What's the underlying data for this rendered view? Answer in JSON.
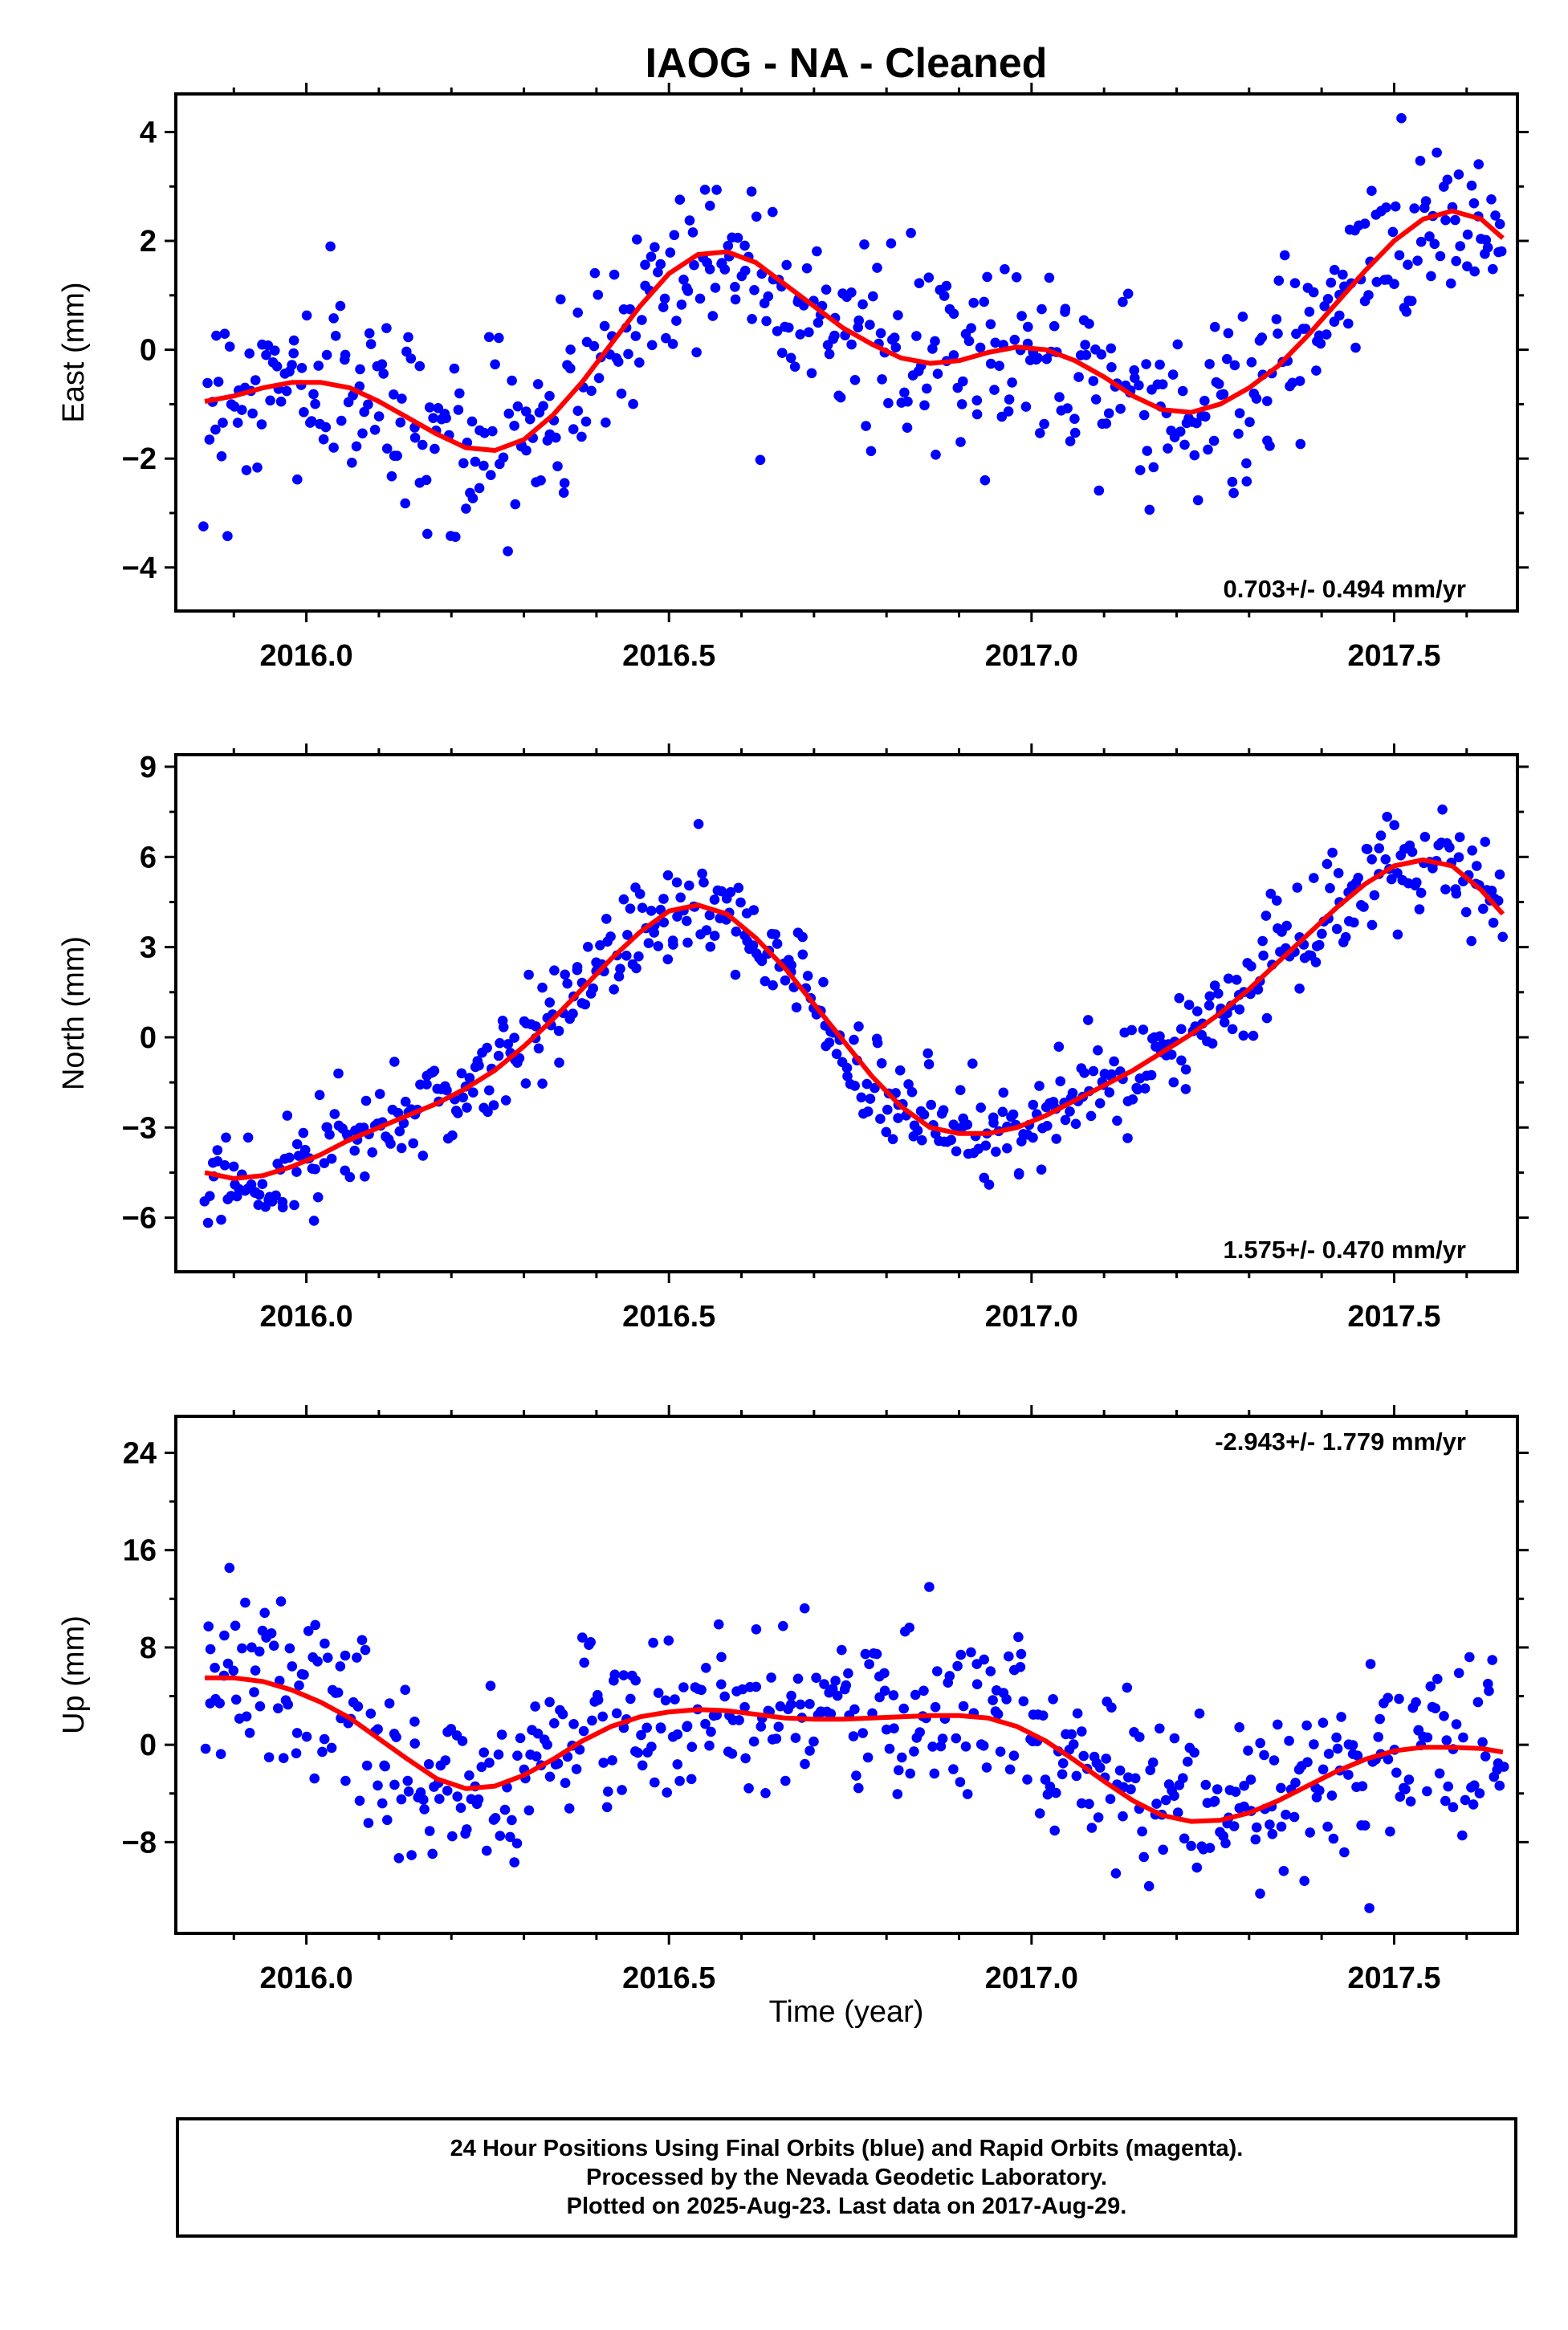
{
  "figure": {
    "title": "IAOG  - NA - Cleaned",
    "xlabel": "Time (year)",
    "colors": {
      "points": "#0000ff",
      "fit": "#ff0000",
      "frame": "#000000"
    }
  },
  "chart_data": [
    {
      "type": "scatter",
      "panel": "east",
      "ylabel": "East (mm)",
      "rate_label": "0.703+/- 0.494 mm/yr",
      "rate_position": "bottom-right",
      "xlim": [
        2015.82,
        2017.67
      ],
      "ylim": [
        -4.8,
        4.7
      ],
      "xticks": [
        2016.0,
        2016.5,
        2017.0,
        2017.5
      ],
      "xtick_labels": [
        "2016.0",
        "2016.5",
        "2017.0",
        "2017.5"
      ],
      "yticks": [
        4,
        2,
        0,
        -2,
        -4
      ],
      "ytick_labels": [
        "4",
        "2",
        "0",
        "−2",
        "−4"
      ],
      "grid": false,
      "series": [
        {
          "kind": "points",
          "x": [
            2015.86,
            2015.9,
            2015.94,
            2015.98,
            2016.02,
            2016.06,
            2016.1,
            2016.14,
            2016.18,
            2016.22,
            2016.26,
            2016.3,
            2016.34,
            2016.38,
            2016.42,
            2016.46,
            2016.5,
            2016.54,
            2016.58,
            2016.62,
            2016.66,
            2016.7,
            2016.74,
            2016.78,
            2016.82,
            2016.86,
            2016.9,
            2016.94,
            2016.98,
            2017.02,
            2017.06,
            2017.1,
            2017.14,
            2017.18,
            2017.22,
            2017.26,
            2017.3,
            2017.34,
            2017.38,
            2017.42,
            2017.46,
            2017.5,
            2017.54,
            2017.58,
            2017.62,
            2017.65
          ],
          "y": [
            -0.9,
            -0.8,
            -0.7,
            -0.6,
            -0.6,
            -0.7,
            -0.9,
            -1.2,
            -1.5,
            -1.8,
            -1.8,
            -1.6,
            -1.2,
            -0.6,
            0.1,
            0.8,
            1.4,
            1.7,
            1.8,
            1.6,
            1.2,
            0.8,
            0.4,
            0.1,
            -0.2,
            -0.3,
            -0.2,
            -0.1,
            0.0,
            0.0,
            -0.2,
            -0.5,
            -0.8,
            -1.1,
            -1.2,
            -1.1,
            -0.8,
            -0.4,
            0.2,
            0.8,
            1.4,
            2.0,
            2.4,
            2.6,
            2.4,
            2.0
          ]
        },
        {
          "kind": "fit",
          "x": [
            2015.86,
            2015.9,
            2015.94,
            2015.98,
            2016.02,
            2016.06,
            2016.1,
            2016.14,
            2016.18,
            2016.22,
            2016.26,
            2016.3,
            2016.34,
            2016.38,
            2016.42,
            2016.46,
            2016.5,
            2016.54,
            2016.58,
            2016.62,
            2016.66,
            2016.7,
            2016.74,
            2016.78,
            2016.82,
            2016.86,
            2016.9,
            2016.94,
            2016.98,
            2017.02,
            2017.06,
            2017.1,
            2017.14,
            2017.18,
            2017.22,
            2017.26,
            2017.3,
            2017.34,
            2017.38,
            2017.42,
            2017.46,
            2017.5,
            2017.54,
            2017.58,
            2017.62,
            2017.65
          ],
          "y": [
            -0.95,
            -0.85,
            -0.7,
            -0.6,
            -0.6,
            -0.7,
            -0.95,
            -1.25,
            -1.55,
            -1.8,
            -1.85,
            -1.65,
            -1.2,
            -0.6,
            0.1,
            0.8,
            1.4,
            1.75,
            1.8,
            1.6,
            1.2,
            0.8,
            0.4,
            0.1,
            -0.15,
            -0.25,
            -0.2,
            -0.05,
            0.05,
            0.0,
            -0.2,
            -0.5,
            -0.85,
            -1.1,
            -1.15,
            -1.0,
            -0.7,
            -0.3,
            0.25,
            0.85,
            1.45,
            2.0,
            2.4,
            2.55,
            2.4,
            2.05
          ]
        }
      ]
    },
    {
      "type": "scatter",
      "panel": "north",
      "ylabel": "North (mm)",
      "rate_label": "1.575+/- 0.470 mm/yr",
      "rate_position": "bottom-right",
      "xlim": [
        2015.82,
        2017.67
      ],
      "ylim": [
        -7.8,
        9.4
      ],
      "xticks": [
        2016.0,
        2016.5,
        2017.0,
        2017.5
      ],
      "xtick_labels": [
        "2016.0",
        "2016.5",
        "2017.0",
        "2017.5"
      ],
      "yticks": [
        9,
        6,
        3,
        0,
        -3,
        -6
      ],
      "ytick_labels": [
        "9",
        "6",
        "3",
        "0",
        "−3",
        "−6"
      ],
      "grid": false,
      "series": [
        {
          "kind": "points",
          "x": [
            2015.86,
            2015.9,
            2015.94,
            2015.98,
            2016.02,
            2016.06,
            2016.1,
            2016.14,
            2016.18,
            2016.22,
            2016.26,
            2016.3,
            2016.34,
            2016.38,
            2016.42,
            2016.46,
            2016.5,
            2016.54,
            2016.58,
            2016.62,
            2016.66,
            2016.7,
            2016.74,
            2016.78,
            2016.82,
            2016.86,
            2016.9,
            2016.94,
            2016.98,
            2017.02,
            2017.06,
            2017.1,
            2017.14,
            2017.18,
            2017.22,
            2017.26,
            2017.3,
            2017.34,
            2017.38,
            2017.42,
            2017.46,
            2017.5,
            2017.54,
            2017.58,
            2017.62,
            2017.65
          ],
          "y": [
            -4.6,
            -4.7,
            -4.6,
            -4.3,
            -3.9,
            -3.4,
            -3.0,
            -2.6,
            -2.2,
            -1.7,
            -1.1,
            -0.3,
            0.6,
            1.6,
            2.6,
            3.5,
            4.2,
            4.4,
            4.1,
            3.3,
            2.3,
            1.1,
            -0.1,
            -1.3,
            -2.3,
            -3.0,
            -3.2,
            -3.2,
            -3.0,
            -2.6,
            -2.1,
            -1.6,
            -1.1,
            -0.5,
            0.1,
            0.8,
            1.6,
            2.5,
            3.4,
            4.3,
            5.1,
            5.7,
            5.9,
            5.7,
            4.9,
            4.1
          ]
        },
        {
          "kind": "fit",
          "x": [
            2015.86,
            2015.9,
            2015.94,
            2015.98,
            2016.02,
            2016.06,
            2016.1,
            2016.14,
            2016.18,
            2016.22,
            2016.26,
            2016.3,
            2016.34,
            2016.38,
            2016.42,
            2016.46,
            2016.5,
            2016.54,
            2016.58,
            2016.62,
            2016.66,
            2016.7,
            2016.74,
            2016.78,
            2016.82,
            2016.86,
            2016.9,
            2016.94,
            2016.98,
            2017.02,
            2017.06,
            2017.1,
            2017.14,
            2017.18,
            2017.22,
            2017.26,
            2017.3,
            2017.34,
            2017.38,
            2017.42,
            2017.46,
            2017.5,
            2017.54,
            2017.58,
            2017.62,
            2017.65
          ],
          "y": [
            -4.5,
            -4.7,
            -4.6,
            -4.3,
            -3.9,
            -3.4,
            -3.0,
            -2.6,
            -2.2,
            -1.7,
            -1.1,
            -0.3,
            0.6,
            1.6,
            2.6,
            3.5,
            4.2,
            4.4,
            4.1,
            3.3,
            2.3,
            1.1,
            -0.1,
            -1.3,
            -2.3,
            -3.0,
            -3.2,
            -3.2,
            -3.0,
            -2.6,
            -2.1,
            -1.6,
            -1.1,
            -0.5,
            0.1,
            0.8,
            1.6,
            2.5,
            3.4,
            4.3,
            5.1,
            5.7,
            5.9,
            5.7,
            4.9,
            4.1
          ]
        }
      ]
    },
    {
      "type": "scatter",
      "panel": "up",
      "ylabel": "Up (mm)",
      "rate_label": "-2.943+/- 1.779 mm/yr",
      "rate_position": "top-right",
      "xlim": [
        2015.82,
        2017.67
      ],
      "ylim": [
        -15.5,
        27
      ],
      "xticks": [
        2016.0,
        2016.5,
        2017.0,
        2017.5
      ],
      "xtick_labels": [
        "2016.0",
        "2016.5",
        "2017.0",
        "2017.5"
      ],
      "yticks": [
        24,
        16,
        8,
        0,
        -8
      ],
      "ytick_labels": [
        "24",
        "16",
        "8",
        "0",
        "−8"
      ],
      "grid": false,
      "series": [
        {
          "kind": "points",
          "x": [
            2015.86,
            2015.9,
            2015.94,
            2015.98,
            2016.02,
            2016.06,
            2016.1,
            2016.14,
            2016.18,
            2016.22,
            2016.26,
            2016.3,
            2016.34,
            2016.38,
            2016.42,
            2016.46,
            2016.5,
            2016.54,
            2016.58,
            2016.62,
            2016.66,
            2016.7,
            2016.74,
            2016.78,
            2016.82,
            2016.86,
            2016.9,
            2016.94,
            2016.98,
            2017.02,
            2017.06,
            2017.1,
            2017.14,
            2017.18,
            2017.22,
            2017.26,
            2017.3,
            2017.34,
            2017.38,
            2017.42,
            2017.46,
            2017.5,
            2017.54,
            2017.58,
            2017.62,
            2017.65
          ],
          "y": [
            5.5,
            5.5,
            5.2,
            4.5,
            3.5,
            2.2,
            0.5,
            -1.2,
            -2.8,
            -3.6,
            -3.4,
            -2.5,
            -1.2,
            0.3,
            1.5,
            2.3,
            2.7,
            2.9,
            2.8,
            2.5,
            2.2,
            2.1,
            2.1,
            2.2,
            2.3,
            2.4,
            2.4,
            2.2,
            1.5,
            0.3,
            -1.3,
            -3.0,
            -4.6,
            -5.8,
            -6.3,
            -6.2,
            -5.6,
            -4.6,
            -3.4,
            -2.2,
            -1.2,
            -0.5,
            -0.2,
            -0.2,
            -0.3,
            -0.6
          ]
        },
        {
          "kind": "fit",
          "x": [
            2015.86,
            2015.9,
            2015.94,
            2015.98,
            2016.02,
            2016.06,
            2016.1,
            2016.14,
            2016.18,
            2016.22,
            2016.26,
            2016.3,
            2016.34,
            2016.38,
            2016.42,
            2016.46,
            2016.5,
            2016.54,
            2016.58,
            2016.62,
            2016.66,
            2016.7,
            2016.74,
            2016.78,
            2016.82,
            2016.86,
            2016.9,
            2016.94,
            2016.98,
            2017.02,
            2017.06,
            2017.1,
            2017.14,
            2017.18,
            2017.22,
            2017.26,
            2017.3,
            2017.34,
            2017.38,
            2017.42,
            2017.46,
            2017.5,
            2017.54,
            2017.58,
            2017.62,
            2017.65
          ],
          "y": [
            5.5,
            5.5,
            5.2,
            4.5,
            3.5,
            2.2,
            0.5,
            -1.2,
            -2.8,
            -3.6,
            -3.4,
            -2.5,
            -1.2,
            0.3,
            1.5,
            2.3,
            2.7,
            2.9,
            2.8,
            2.5,
            2.2,
            2.1,
            2.1,
            2.2,
            2.3,
            2.4,
            2.4,
            2.2,
            1.5,
            0.3,
            -1.3,
            -3.0,
            -4.6,
            -5.8,
            -6.3,
            -6.2,
            -5.6,
            -4.6,
            -3.4,
            -2.2,
            -1.2,
            -0.5,
            -0.2,
            -0.2,
            -0.3,
            -0.6
          ]
        }
      ]
    }
  ],
  "info": {
    "line1": "24 Hour Positions Using Final Orbits (blue) and Rapid Orbits (magenta).",
    "line2": "Processed by the Nevada Geodetic Laboratory.",
    "line3": "Plotted on 2025-Aug-23. Last data on 2017-Aug-29."
  }
}
